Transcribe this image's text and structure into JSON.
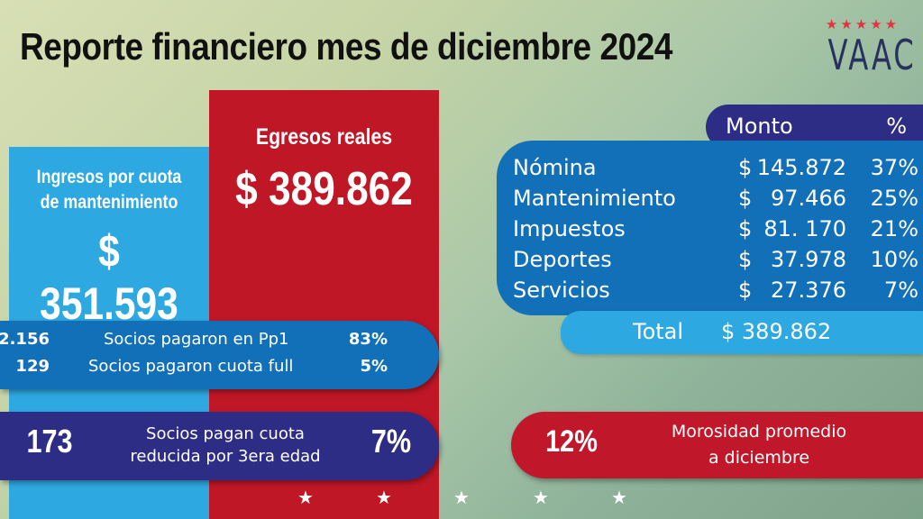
{
  "title": "Reporte financiero mes de diciembre 2024",
  "logo": {
    "text": "VAAC",
    "stars": "★★★★★"
  },
  "ingresos": {
    "label_line1": "Ingresos por cuota",
    "label_line2": "de mantenimiento",
    "value": "$ 351.593"
  },
  "egresos": {
    "label": "Egresos reales",
    "value": "$ 389.862"
  },
  "socios": [
    {
      "count": "2.156",
      "label": "Socios pagaron en Pp1",
      "percent": "83%"
    },
    {
      "count": "129",
      "label": "Socios pagaron cuota full",
      "percent": "5%"
    }
  ],
  "tercera_edad": {
    "count": "173",
    "label_line1": "Socios pagan cuota",
    "label_line2": "reducida por 3era edad",
    "percent": "7%"
  },
  "morosidad": {
    "percent": "12%",
    "label_line1": "Morosidad promedio",
    "label_line2": "a diciembre"
  },
  "table": {
    "header_amount": "Monto",
    "header_percent": "%",
    "currency": "$",
    "rows": [
      {
        "label": "Nómina",
        "amount": "145.872",
        "percent": "37%"
      },
      {
        "label": "Mantenimiento",
        "amount": "97.466",
        "percent": "25%"
      },
      {
        "label": "Impuestos",
        "amount": "81. 170",
        "percent": "21%"
      },
      {
        "label": "Deportes",
        "amount": "37.978",
        "percent": "10%"
      },
      {
        "label": "Servicios",
        "amount": "27.376",
        "percent": "7%"
      }
    ],
    "total_label": "Total",
    "total_value": "$ 389.862"
  },
  "footer_star": "★",
  "colors": {
    "blue": "#1270b8",
    "light_blue": "#2ea8e0",
    "red": "#bf1726",
    "indigo": "#2e2d86",
    "navy": "#27325e"
  }
}
